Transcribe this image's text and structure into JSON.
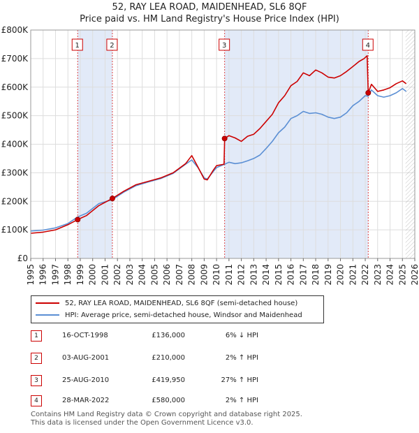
{
  "header": {
    "title_line1": "52, RAY LEA ROAD, MAIDENHEAD, SL6 8QF",
    "title_line2": "Price paid vs. HM Land Registry's House Price Index (HPI)"
  },
  "colors": {
    "property_line": "#cc0000",
    "hpi_line": "#5b8fd4",
    "shade": "#dde6f7",
    "grid": "#dddddd",
    "marker_border": "#cc0000"
  },
  "chart_data": {
    "type": "line",
    "title": "52, RAY LEA ROAD, MAIDENHEAD, SL6 8QF — Price paid vs. HM Land Registry's House Price Index (HPI)",
    "xlabel": "",
    "ylabel": "",
    "xlim": [
      1995,
      2026
    ],
    "ylim": [
      0,
      800000
    ],
    "x_ticks": [
      1995,
      1996,
      1997,
      1998,
      1999,
      2000,
      2001,
      2002,
      2003,
      2004,
      2005,
      2006,
      2007,
      2008,
      2009,
      2010,
      2011,
      2012,
      2013,
      2014,
      2015,
      2016,
      2017,
      2018,
      2019,
      2020,
      2021,
      2022,
      2023,
      2024,
      2025,
      2026
    ],
    "x_tick_labels": [
      "1995",
      "1996",
      "1997",
      "1998",
      "1999",
      "2000",
      "2001",
      "2002",
      "2003",
      "2004",
      "2005",
      "2006",
      "2007",
      "2008",
      "2009",
      "2010",
      "2011",
      "2012",
      "2013",
      "2014",
      "2015",
      "2016",
      "2017",
      "2018",
      "2019",
      "2020",
      "2021",
      "2022",
      "2023",
      "2024",
      "2025",
      "2026"
    ],
    "y_ticks": [
      0,
      100000,
      200000,
      300000,
      400000,
      500000,
      600000,
      700000,
      800000
    ],
    "y_tick_labels": [
      "£0",
      "£100K",
      "£200K",
      "£300K",
      "£400K",
      "£500K",
      "£600K",
      "£700K",
      "£800K"
    ],
    "grid": true,
    "shaded_periods": [
      [
        1998.79,
        2001.59
      ],
      [
        2010.65,
        2022.24
      ]
    ],
    "future_hatch_from": 2025.25,
    "series": [
      {
        "name": "52, RAY LEA ROAD, MAIDENHEAD, SL6 8QF (semi-detached house)",
        "color": "#cc0000",
        "x": [
          1995.0,
          1996.0,
          1997.0,
          1998.0,
          1998.79,
          1999.5,
          2000.5,
          2001.59,
          2002.5,
          2003.5,
          2004.5,
          2005.5,
          2006.5,
          2007.5,
          2008.0,
          2008.5,
          2009.0,
          2009.25,
          2009.75,
          2010.0,
          2010.6,
          2010.65,
          2011.0,
          2011.5,
          2012.0,
          2012.5,
          2013.0,
          2013.5,
          2014.0,
          2014.5,
          2015.0,
          2015.5,
          2016.0,
          2016.5,
          2017.0,
          2017.5,
          2018.0,
          2018.5,
          2019.0,
          2019.5,
          2020.0,
          2020.5,
          2021.0,
          2021.5,
          2021.9,
          2022.15,
          2022.24,
          2022.5,
          2023.0,
          2023.5,
          2024.0,
          2024.5,
          2025.0,
          2025.3
        ],
        "y": [
          88000,
          92000,
          100000,
          118000,
          136000,
          150000,
          185000,
          210000,
          235000,
          258000,
          270000,
          282000,
          300000,
          332000,
          360000,
          320000,
          278000,
          275000,
          310000,
          325000,
          330000,
          419950,
          430000,
          422000,
          410000,
          428000,
          435000,
          455000,
          480000,
          505000,
          545000,
          570000,
          605000,
          620000,
          650000,
          640000,
          660000,
          650000,
          635000,
          632000,
          640000,
          655000,
          672000,
          690000,
          700000,
          710000,
          580000,
          610000,
          585000,
          590000,
          598000,
          612000,
          622000,
          612000
        ]
      },
      {
        "name": "HPI: Average price, semi-detached house, Windsor and Maidenhead",
        "color": "#5b8fd4",
        "x": [
          1995.0,
          1996.0,
          1997.0,
          1998.0,
          1998.79,
          1999.5,
          2000.5,
          2001.59,
          2002.5,
          2003.5,
          2004.5,
          2005.5,
          2006.5,
          2007.5,
          2008.0,
          2008.5,
          2009.0,
          2009.25,
          2009.75,
          2010.0,
          2010.65,
          2011.0,
          2011.5,
          2012.0,
          2012.5,
          2013.0,
          2013.5,
          2014.0,
          2014.5,
          2015.0,
          2015.5,
          2016.0,
          2016.5,
          2017.0,
          2017.5,
          2018.0,
          2018.5,
          2019.0,
          2019.5,
          2020.0,
          2020.5,
          2021.0,
          2021.5,
          2022.0,
          2022.24,
          2022.5,
          2023.0,
          2023.5,
          2024.0,
          2024.5,
          2025.0,
          2025.3
        ],
        "y": [
          96000,
          99000,
          107000,
          122000,
          145000,
          158000,
          192000,
          206000,
          232000,
          255000,
          268000,
          280000,
          298000,
          330000,
          345000,
          318000,
          282000,
          278000,
          305000,
          318000,
          330000,
          337000,
          332000,
          335000,
          342000,
          350000,
          362000,
          385000,
          410000,
          440000,
          460000,
          490000,
          500000,
          515000,
          508000,
          510000,
          505000,
          495000,
          490000,
          495000,
          510000,
          535000,
          550000,
          570000,
          568000,
          590000,
          570000,
          565000,
          570000,
          580000,
          595000,
          585000
        ]
      }
    ],
    "markers": [
      {
        "label": "1",
        "x": 1998.79,
        "y": 136000
      },
      {
        "label": "2",
        "x": 2001.59,
        "y": 210000
      },
      {
        "label": "3",
        "x": 2010.65,
        "y": 419950
      },
      {
        "label": "4",
        "x": 2022.24,
        "y": 580000
      }
    ]
  },
  "legend": {
    "property_label": "52, RAY LEA ROAD, MAIDENHEAD, SL6 8QF (semi-detached house)",
    "hpi_label": "HPI: Average price, semi-detached house, Windsor and Maidenhead"
  },
  "transactions": [
    {
      "num": "1",
      "date": "16-OCT-1998",
      "price": "£136,000",
      "delta": "6% ↓ HPI"
    },
    {
      "num": "2",
      "date": "03-AUG-2001",
      "price": "£210,000",
      "delta": "2% ↑ HPI"
    },
    {
      "num": "3",
      "date": "25-AUG-2010",
      "price": "£419,950",
      "delta": "27% ↑ HPI"
    },
    {
      "num": "4",
      "date": "28-MAR-2022",
      "price": "£580,000",
      "delta": "2% ↑ HPI"
    }
  ],
  "footer": {
    "line1": "Contains HM Land Registry data © Crown copyright and database right 2025.",
    "line2": "This data is licensed under the Open Government Licence v3.0."
  }
}
